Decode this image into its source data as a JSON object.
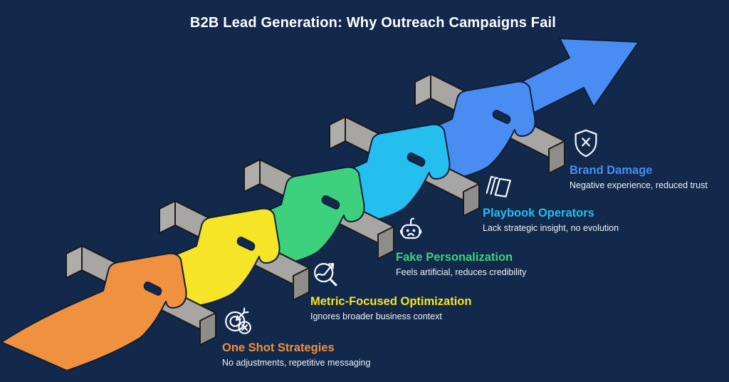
{
  "header": {
    "title": "B2B Lead Generation: Why Outreach Campaigns Fail",
    "title_color": "#FFFFFF"
  },
  "diagram": {
    "background": "#12294B",
    "ribbon_outline": "#0F1D3A",
    "description_text_color": "#EDF2F8",
    "bar_colors": {
      "top": "#C7C5C1",
      "front": "#A8A6A2",
      "left_cap": "#AFADA9",
      "right_cap": "#8F8D89",
      "outline": "#1A1A1A"
    },
    "arrow": {
      "label": "growth-arrow",
      "color": "#4A8DF2"
    },
    "stages": [
      {
        "label": "One Shot Strategies",
        "description": "No adjustments, repetitive messaging",
        "color": "#F0913F",
        "icon": "target-miss-icon"
      },
      {
        "label": "Metric-Focused Optimization",
        "description": "Ignores broader business context",
        "color": "#F6E426",
        "icon": "magnifier-trend-icon"
      },
      {
        "label": "Fake Personalization",
        "description": "Feels artificial, reduces credibility",
        "color": "#3ED17D",
        "icon": "robot-icon"
      },
      {
        "label": "Playbook Operators",
        "description": "Lack strategic insight, no evolution",
        "color": "#25BFEF",
        "icon": "layers-icon"
      },
      {
        "label": "Brand Damage",
        "description": "Negative experience, reduced trust",
        "color": "#4A8DF2",
        "icon": "shield-x-icon"
      }
    ]
  }
}
